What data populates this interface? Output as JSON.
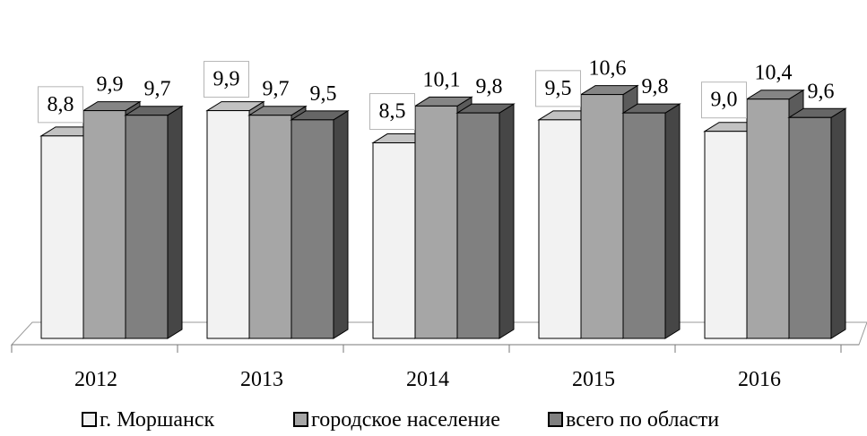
{
  "chart_data": {
    "type": "bar",
    "title": "",
    "xlabel": "",
    "ylabel": "",
    "ylim": [
      0,
      10.8
    ],
    "grid": false,
    "legend_position": "bottom",
    "categories": [
      "2012",
      "2013",
      "2014",
      "2015",
      "2016"
    ],
    "series": [
      {
        "name": "г. Моршанск",
        "values": [
          8.8,
          9.9,
          8.5,
          9.5,
          9.0
        ],
        "labels": [
          "8,8",
          "9,9",
          "8,5",
          "9,5",
          "9,0"
        ],
        "color": "#f2f2f2",
        "boxed_labels": true
      },
      {
        "name": "городское население",
        "values": [
          9.9,
          9.7,
          10.1,
          10.6,
          10.4
        ],
        "labels": [
          "9,9",
          "9,7",
          "10,1",
          "10,6",
          "10,4"
        ],
        "color": "#a6a6a6",
        "boxed_labels": false
      },
      {
        "name": "всего по области",
        "values": [
          9.7,
          9.5,
          9.8,
          9.8,
          9.6
        ],
        "labels": [
          "9,7",
          "9,5",
          "9,8",
          "9,8",
          "9,6"
        ],
        "color": "#808080",
        "boxed_labels": false
      }
    ]
  }
}
